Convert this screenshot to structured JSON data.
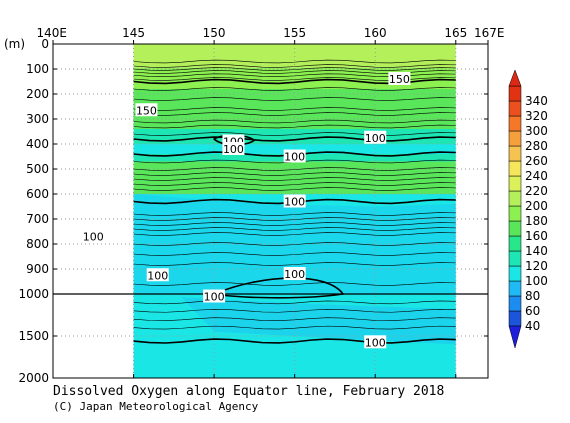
{
  "chart_data": {
    "type": "heatmap",
    "title": "Dissolved Oxygen along Equator line, February 2018",
    "credit": "(C) Japan Meteorological Agency",
    "x_axis": {
      "range": [
        140,
        167
      ],
      "ticks": [
        {
          "value": 140,
          "label": "140E"
        },
        {
          "value": 145,
          "label": "145"
        },
        {
          "value": 150,
          "label": "150"
        },
        {
          "value": 155,
          "label": "155"
        },
        {
          "value": 160,
          "label": "160"
        },
        {
          "value": 165,
          "label": "165"
        },
        {
          "value": 167,
          "label": "167E"
        }
      ]
    },
    "y_axis": {
      "unit_label": "(m)",
      "upper_range": [
        0,
        1000
      ],
      "lower_range": [
        1000,
        2000
      ],
      "ticks": [
        {
          "value": 0,
          "label": "0"
        },
        {
          "value": 100,
          "label": "100"
        },
        {
          "value": 200,
          "label": "200"
        },
        {
          "value": 300,
          "label": "300"
        },
        {
          "value": 400,
          "label": "400"
        },
        {
          "value": 500,
          "label": "500"
        },
        {
          "value": 600,
          "label": "600"
        },
        {
          "value": 700,
          "label": "700"
        },
        {
          "value": 800,
          "label": "800"
        },
        {
          "value": 900,
          "label": "900"
        },
        {
          "value": 1000,
          "label": "1000"
        },
        {
          "value": 1500,
          "label": "1500"
        },
        {
          "value": 2000,
          "label": "2000"
        }
      ]
    },
    "data_x_range": [
      145,
      165
    ],
    "grid": true,
    "colorbar": {
      "levels": [
        40,
        60,
        80,
        100,
        120,
        140,
        160,
        180,
        200,
        220,
        240,
        260,
        280,
        300,
        320,
        340
      ],
      "colors": [
        "#1a55dc",
        "#1c8cf0",
        "#1fb9f5",
        "#1ae6e6",
        "#1de6b4",
        "#28e68c",
        "#5ae65a",
        "#8cf050",
        "#b4f05a",
        "#dcf05a",
        "#f5e65a",
        "#f5c350",
        "#f5a03c",
        "#f57828",
        "#eb501e",
        "#e13214"
      ],
      "under_color": "#1e1edc",
      "over_color": "#dc2814"
    },
    "bands": [
      {
        "top": 0,
        "bottom": 95,
        "value": 200
      },
      {
        "top": 95,
        "bottom": 180,
        "value": 180
      },
      {
        "top": 180,
        "bottom": 340,
        "value": 160
      },
      {
        "top": 340,
        "bottom": 400,
        "value": 120
      },
      {
        "top": 400,
        "bottom": 440,
        "value": 100
      },
      {
        "top": 440,
        "bottom": 470,
        "value": 120
      },
      {
        "top": 470,
        "bottom": 600,
        "value": 160
      },
      {
        "top": 600,
        "bottom": 1000,
        "value": 100
      },
      {
        "top": 1000,
        "bottom": 2000,
        "value": 100
      }
    ],
    "contour_labels": [
      {
        "text": "150",
        "x": 161.5,
        "depth": 140
      },
      {
        "text": "150",
        "x": 145.8,
        "depth": 265
      },
      {
        "text": "100",
        "x": 151.2,
        "depth": 390
      },
      {
        "text": "100",
        "x": 151.2,
        "depth": 420
      },
      {
        "text": "100",
        "x": 155.0,
        "depth": 450
      },
      {
        "text": "100",
        "x": 160.0,
        "depth": 375
      },
      {
        "text": "100",
        "x": 155.0,
        "depth": 630
      },
      {
        "text": "100",
        "x": 142.5,
        "depth": 770
      },
      {
        "text": "100",
        "x": 146.5,
        "depth": 925
      },
      {
        "text": "100",
        "x": 155.0,
        "depth": 920
      },
      {
        "text": "100",
        "x": 150.0,
        "depth": 1030
      },
      {
        "text": "100",
        "x": 160.0,
        "depth": 1575
      }
    ]
  }
}
